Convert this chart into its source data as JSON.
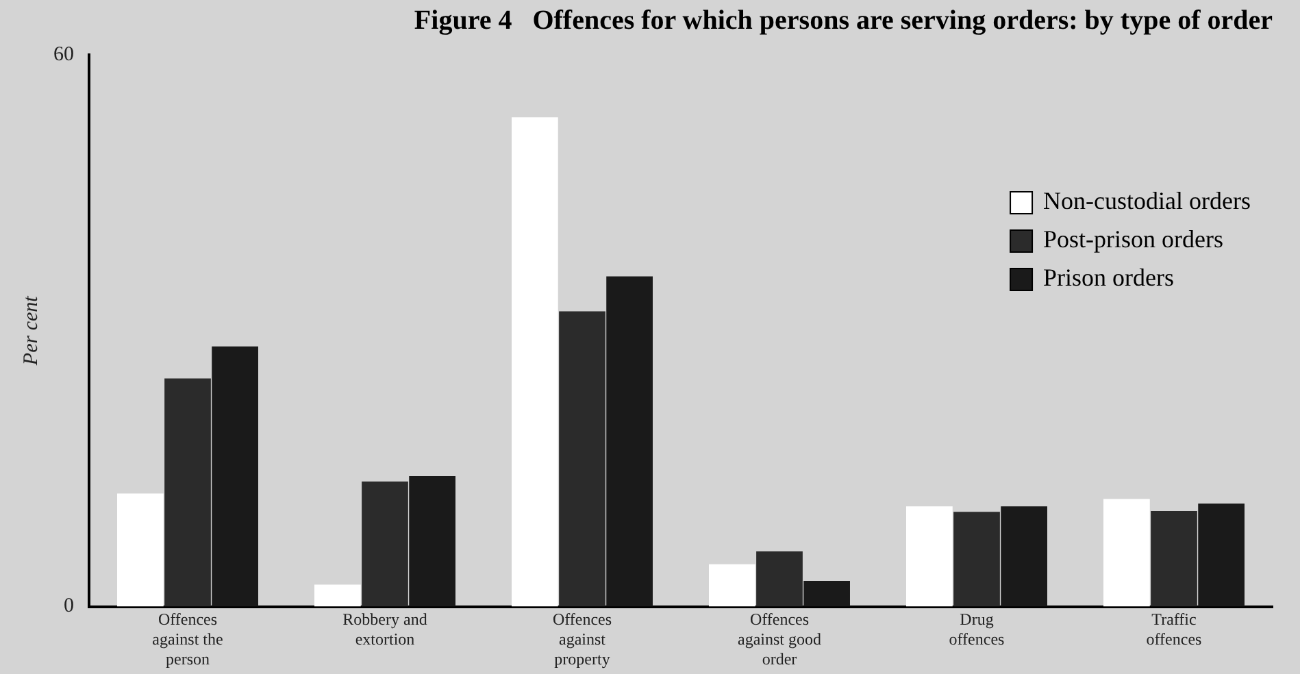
{
  "chart_data": {
    "type": "bar",
    "title": "Figure 4   Offences for which persons are serving orders: by type of order",
    "ylabel": "Per cent",
    "categories": [
      "Offences against the person",
      "Robbery and extortion",
      "Offences against property",
      "Offences against good order",
      "Drug offences",
      "Traffic offences"
    ],
    "series": [
      {
        "name": "Non-custodial orders",
        "color": "#ffffff",
        "values": [
          12.3,
          2.4,
          53.2,
          4.6,
          10.9,
          11.7
        ]
      },
      {
        "name": "Post-prison orders",
        "color": "#2b2b2b",
        "values": [
          24.8,
          13.6,
          32.1,
          6.0,
          10.3,
          10.4
        ]
      },
      {
        "name": "Prison orders",
        "color": "#1a1a1a",
        "values": [
          28.3,
          14.2,
          35.9,
          2.8,
          10.9,
          11.2
        ]
      }
    ],
    "ylim": [
      0,
      60
    ],
    "yticks": [
      0,
      60
    ],
    "grid": false,
    "legend": "top right"
  }
}
